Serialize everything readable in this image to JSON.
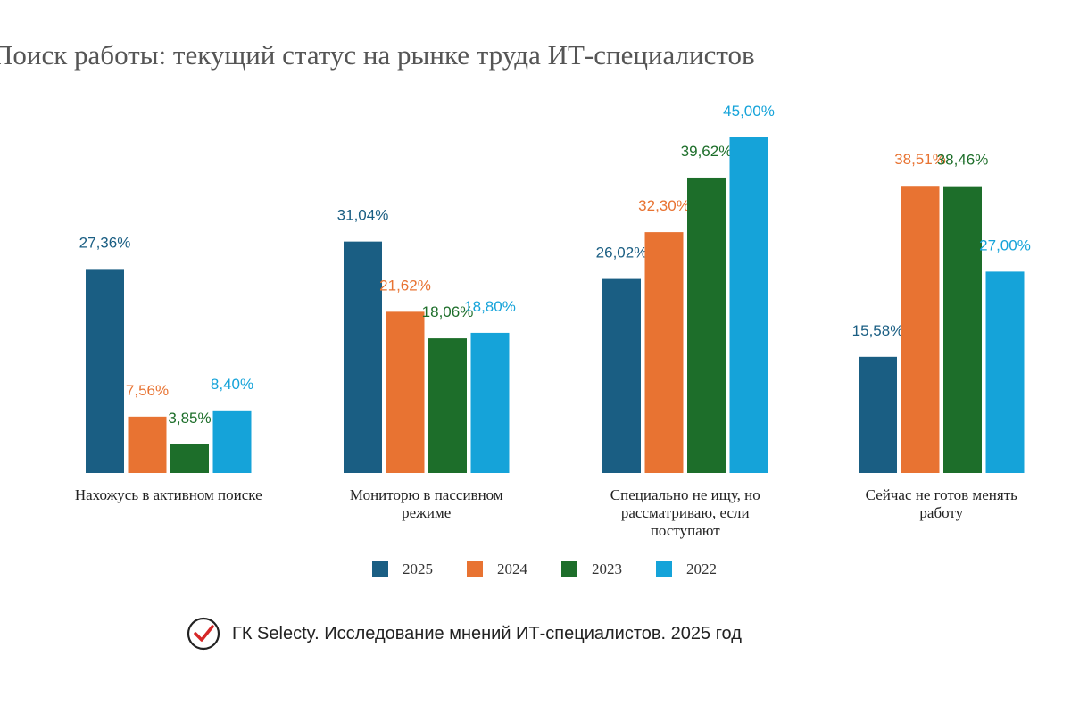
{
  "chart_data": {
    "type": "bar",
    "title": "Поиск работы: текущий статус на рынке труда ИТ-специалистов",
    "categories": [
      [
        "Нахожусь в активном поиске"
      ],
      [
        "Мониторю в пассивном",
        "режиме"
      ],
      [
        "Специально не ищу, но",
        "рассматриваю, если",
        "поступают"
      ],
      [
        "Сейчас не готов менять",
        "работу"
      ]
    ],
    "series": [
      {
        "name": "2025",
        "color": "#1a5e83",
        "values": [
          27.36,
          31.04,
          26.02,
          15.58
        ],
        "labels": [
          "27,36%",
          "31,04%",
          "26,02%",
          "15,58%"
        ]
      },
      {
        "name": "2024",
        "color": "#e87332",
        "values": [
          7.56,
          21.62,
          32.3,
          38.51
        ],
        "labels": [
          "7,56%",
          "21,62%",
          "32,30%",
          "38,51%"
        ]
      },
      {
        "name": "2023",
        "color": "#1d6e2a",
        "values": [
          3.85,
          18.06,
          39.62,
          38.46
        ],
        "labels": [
          "3,85%",
          "18,06%",
          "39,62%",
          "38,46%"
        ]
      },
      {
        "name": "2022",
        "color": "#15a3d9",
        "values": [
          8.4,
          18.8,
          45.0,
          27.0
        ],
        "labels": [
          "8,40%",
          "18,80%",
          "45,00%",
          "27,00%"
        ]
      }
    ],
    "ylim": [
      0,
      45
    ],
    "legend_position": "bottom",
    "grid": false
  },
  "source": {
    "text": "ГК Selecty. Исследование мнений ИТ-специалистов. 2025 год",
    "icon": "check-circle-icon",
    "icon_color": "#d62727"
  }
}
